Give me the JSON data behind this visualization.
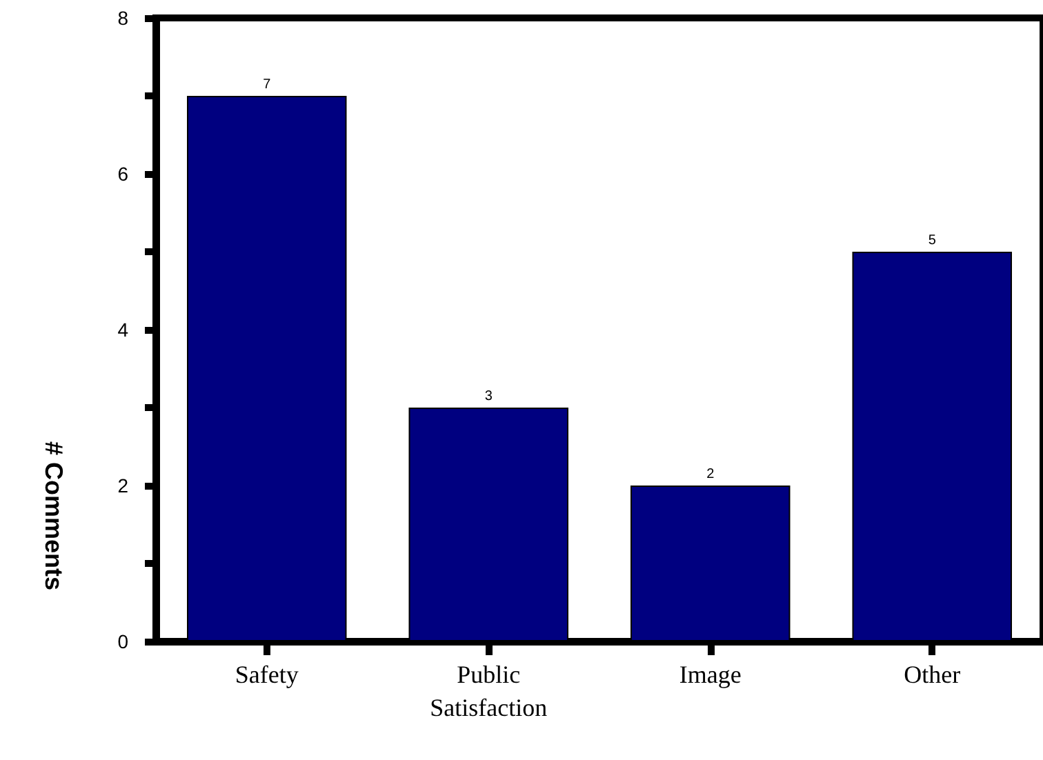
{
  "chart_data": {
    "type": "bar",
    "ylabel": "# Comments",
    "categories": [
      "Safety",
      "Public\nSatisfaction",
      "Image",
      "Other"
    ],
    "values": [
      7,
      3,
      2,
      5
    ],
    "color": "#000080",
    "ylim": [
      0,
      8
    ],
    "yticks": [
      0,
      {
        "value": 1,
        "label": null
      },
      2,
      {
        "value": 3,
        "label": null
      },
      4,
      {
        "value": 5,
        "label": null
      },
      6,
      {
        "value": 7,
        "label": null
      },
      8
    ],
    "data_labels": true,
    "grid": false
  }
}
